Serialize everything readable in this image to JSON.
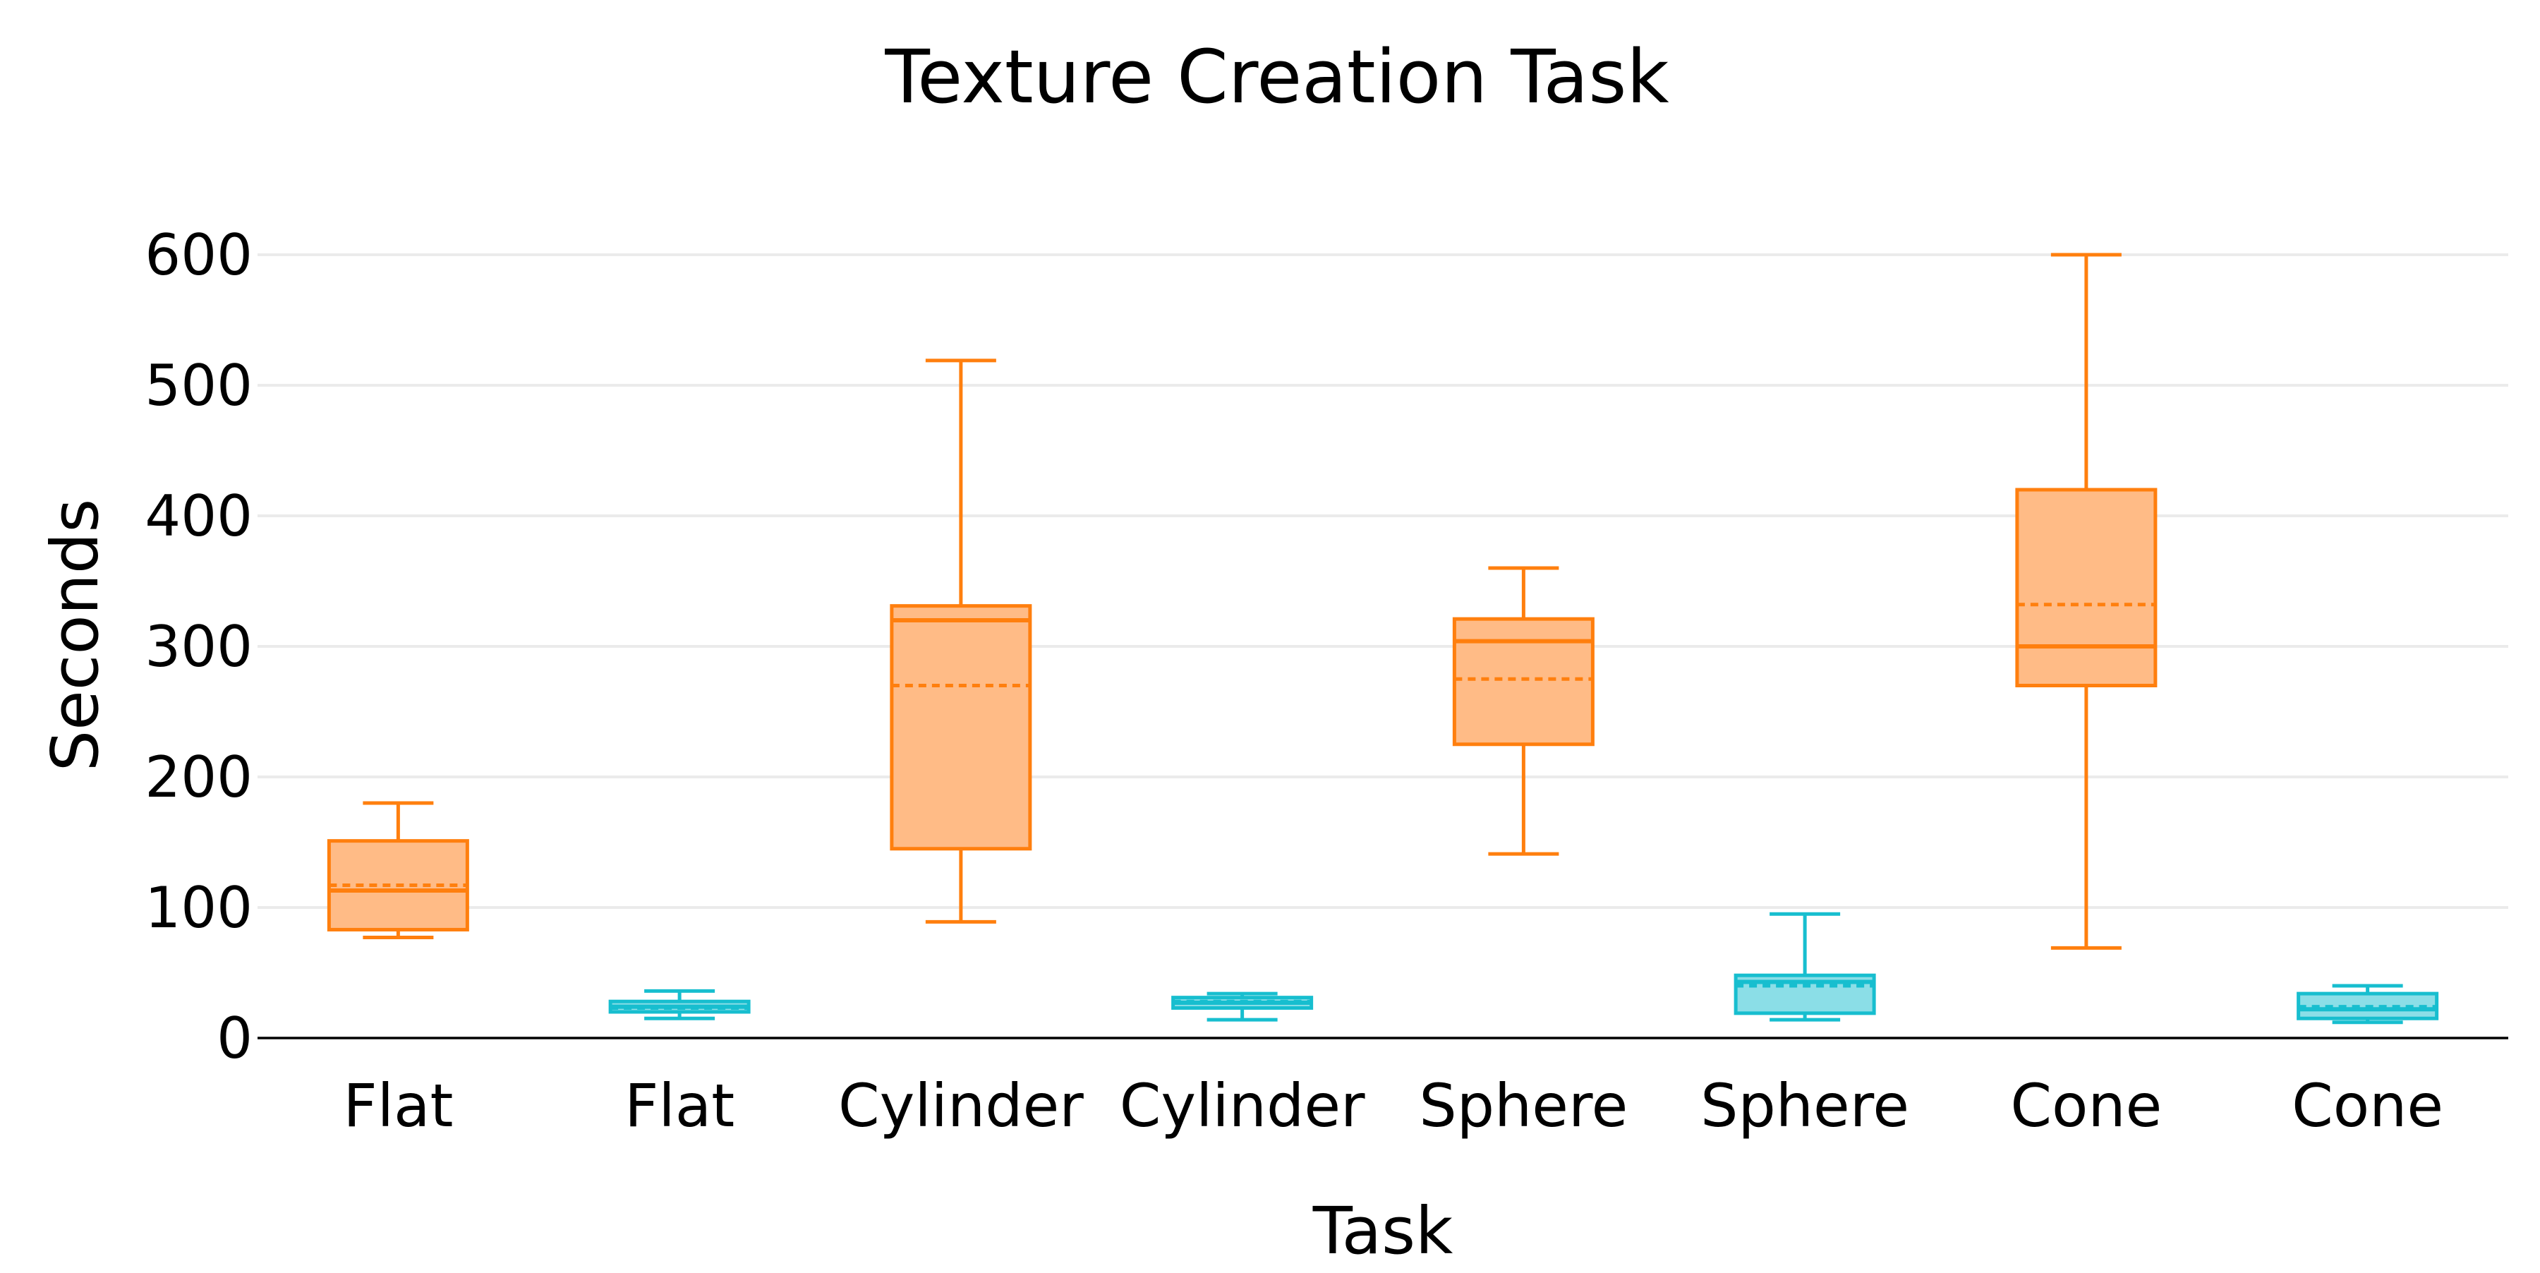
{
  "chart_data": {
    "type": "box",
    "title": "Texture Creation Task",
    "xlabel": "Task",
    "ylabel": "Seconds",
    "ylim": [
      0,
      600
    ],
    "yticks": [
      0,
      100,
      200,
      300,
      400,
      500,
      600
    ],
    "grid": true,
    "colors": {
      "orange": "#ff7f0e",
      "orange_fill": "#ffbb86",
      "teal": "#17becf",
      "teal_fill": "#8bdee7",
      "grid": "#ebebeb",
      "axis": "#000000"
    },
    "boxes": [
      {
        "category": "Flat",
        "series": "orange",
        "min": 77,
        "q1": 83,
        "median": 113,
        "mean": 117,
        "q3": 151,
        "max": 180
      },
      {
        "category": "Flat",
        "series": "teal",
        "min": 15,
        "q1": 20,
        "median": 24,
        "mean": 23,
        "q3": 28,
        "max": 36
      },
      {
        "category": "Cylinder",
        "series": "orange",
        "min": 89,
        "q1": 145,
        "median": 320,
        "mean": 270,
        "q3": 331,
        "max": 519
      },
      {
        "category": "Cylinder",
        "series": "teal",
        "min": 14,
        "q1": 23,
        "median": 27,
        "mean": 28,
        "q3": 31,
        "max": 34
      },
      {
        "category": "Sphere",
        "series": "orange",
        "min": 141,
        "q1": 225,
        "median": 304,
        "mean": 275,
        "q3": 321,
        "max": 360
      },
      {
        "category": "Sphere",
        "series": "teal",
        "min": 14,
        "q1": 19,
        "median": 43,
        "mean": 40,
        "q3": 48,
        "max": 95
      },
      {
        "category": "Cone",
        "series": "orange",
        "min": 69,
        "q1": 270,
        "median": 300,
        "mean": 332,
        "q3": 420,
        "max": 600
      },
      {
        "category": "Cone",
        "series": "teal",
        "min": 12,
        "q1": 15,
        "median": 22,
        "mean": 24,
        "q3": 34,
        "max": 40
      }
    ]
  }
}
